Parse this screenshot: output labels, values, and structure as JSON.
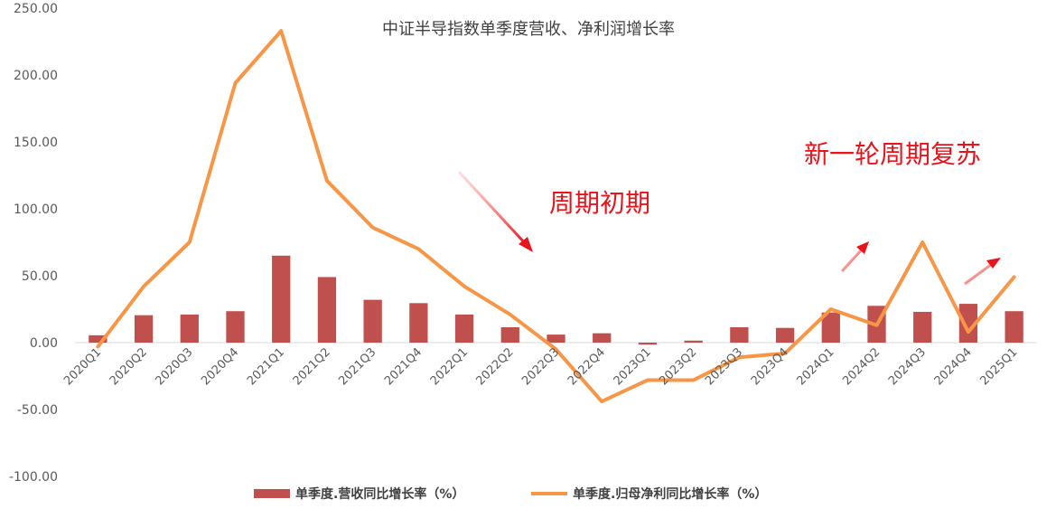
{
  "chart_data": {
    "type": "bar",
    "title": "中证半导指数单季度营收、净利润增长率",
    "categories": [
      "2020Q1",
      "2020Q2",
      "2020Q3",
      "2020Q4",
      "2021Q1",
      "2021Q2",
      "2021Q3",
      "2021Q4",
      "2022Q1",
      "2022Q2",
      "2022Q3",
      "2022Q4",
      "2023Q1",
      "2023Q2",
      "2023Q3",
      "2023Q4",
      "2024Q1",
      "2024Q2",
      "2024Q3",
      "2024Q4",
      "2025Q1"
    ],
    "y_ticks": [
      "250.00",
      "200.00",
      "150.00",
      "100.00",
      "50.00",
      "0.00",
      "-50.00",
      "-100.00"
    ],
    "ylim": [
      -100,
      250
    ],
    "grid": false,
    "legend_position": "bottom",
    "series": [
      {
        "name": "单季度.营收同比增长率（%）",
        "type": "bar",
        "color": "#c0504d",
        "values": [
          5.5,
          20.5,
          21,
          23.5,
          65,
          49,
          32,
          29.5,
          21,
          11.5,
          6,
          7,
          -1.5,
          1.5,
          11.5,
          11,
          22.5,
          27.5,
          23,
          29,
          23.5
        ]
      },
      {
        "name": "单季度.归母净利同比增长率（%）",
        "type": "line",
        "color": "#f79646",
        "values": [
          -3,
          42,
          75,
          194,
          233,
          121,
          86,
          70,
          42,
          21,
          -5,
          -44,
          -28,
          -28,
          -11,
          -8,
          25,
          13,
          75,
          8,
          49
        ]
      }
    ],
    "annotations": [
      {
        "text": "周期初期",
        "color": "#e8131b"
      },
      {
        "text": "新一轮周期复苏",
        "color": "#e8131b"
      }
    ]
  }
}
